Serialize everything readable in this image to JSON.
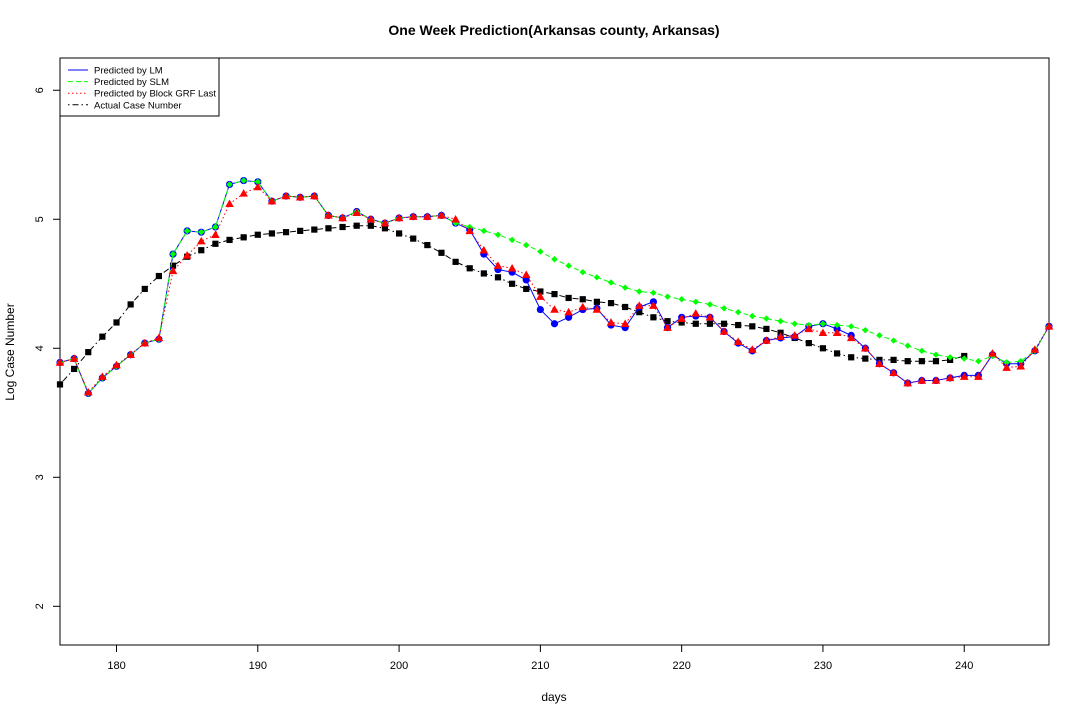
{
  "chart_data": {
    "type": "line",
    "title": "One Week Prediction(Arkansas county, Arkansas)",
    "xlabel": "days",
    "ylabel": "Log Case Number",
    "xlim": [
      176,
      246
    ],
    "ylim": [
      1.7,
      6.25
    ],
    "xticks": [
      180,
      190,
      200,
      210,
      220,
      230,
      240
    ],
    "yticks": [
      2,
      3,
      4,
      5,
      6
    ],
    "legend_position": "top-left",
    "grid": false,
    "x": [
      176,
      177,
      178,
      179,
      180,
      181,
      182,
      183,
      184,
      185,
      186,
      187,
      188,
      189,
      190,
      191,
      192,
      193,
      194,
      195,
      196,
      197,
      198,
      199,
      200,
      201,
      202,
      203,
      204,
      205,
      206,
      207,
      208,
      209,
      210,
      211,
      212,
      213,
      214,
      215,
      216,
      217,
      218,
      219,
      220,
      221,
      222,
      223,
      224,
      225,
      226,
      227,
      228,
      229,
      230,
      231,
      232,
      233,
      234,
      235,
      236,
      237,
      238,
      239,
      240,
      241,
      242,
      243,
      244,
      245,
      246
    ],
    "series": [
      {
        "name": "Predicted by LM",
        "color": "#0000ff",
        "line": "solid",
        "marker": "circle",
        "values": [
          3.89,
          3.92,
          3.65,
          3.77,
          3.86,
          3.95,
          4.04,
          4.07,
          4.73,
          4.91,
          4.9,
          4.94,
          5.27,
          5.3,
          5.29,
          5.14,
          5.18,
          5.17,
          5.18,
          5.03,
          5.01,
          5.06,
          5.0,
          4.97,
          5.01,
          5.02,
          5.02,
          5.03,
          4.97,
          4.92,
          4.73,
          4.61,
          4.59,
          4.53,
          4.3,
          4.19,
          4.24,
          4.3,
          4.31,
          4.18,
          4.16,
          4.32,
          4.36,
          4.16,
          4.24,
          4.25,
          4.24,
          4.13,
          4.04,
          3.98,
          4.06,
          4.08,
          4.09,
          4.17,
          4.19,
          4.15,
          4.1,
          4.0,
          3.88,
          3.81,
          3.73,
          3.75,
          3.75,
          3.77,
          3.79,
          3.79,
          3.95,
          3.88,
          3.88,
          3.98,
          4.17
        ]
      },
      {
        "name": "Predicted by SLM",
        "color": "#00ff00",
        "line": "dashed",
        "marker": "diamond",
        "values": [
          3.89,
          3.92,
          3.65,
          3.77,
          3.86,
          3.95,
          4.04,
          4.07,
          4.73,
          4.91,
          4.9,
          4.94,
          5.27,
          5.3,
          5.29,
          5.14,
          5.18,
          5.17,
          5.18,
          5.03,
          5.01,
          5.06,
          5.0,
          4.97,
          5.01,
          5.02,
          5.02,
          5.03,
          4.97,
          4.94,
          4.91,
          4.88,
          4.84,
          4.8,
          4.75,
          4.69,
          4.64,
          4.59,
          4.55,
          4.51,
          4.47,
          4.44,
          4.43,
          4.4,
          4.38,
          4.36,
          4.34,
          4.31,
          4.28,
          4.25,
          4.23,
          4.21,
          4.19,
          4.18,
          4.19,
          4.18,
          4.17,
          4.14,
          4.1,
          4.06,
          4.02,
          3.98,
          3.95,
          3.93,
          3.92,
          3.9,
          3.94,
          3.89,
          3.9,
          3.98,
          4.17
        ]
      },
      {
        "name": "Predicted by Block GRF Last",
        "color": "#ff0000",
        "line": "dotted",
        "marker": "triangle",
        "values": [
          3.89,
          3.92,
          3.66,
          3.78,
          3.87,
          3.95,
          4.04,
          4.08,
          4.6,
          4.72,
          4.83,
          4.88,
          5.12,
          5.2,
          5.25,
          5.14,
          5.18,
          5.17,
          5.18,
          5.03,
          5.01,
          5.05,
          5.0,
          4.97,
          5.01,
          5.02,
          5.02,
          5.03,
          5.0,
          4.91,
          4.76,
          4.64,
          4.62,
          4.57,
          4.4,
          4.3,
          4.28,
          4.32,
          4.3,
          4.2,
          4.19,
          4.33,
          4.33,
          4.16,
          4.23,
          4.27,
          4.24,
          4.13,
          4.05,
          3.99,
          4.06,
          4.09,
          4.1,
          4.15,
          4.12,
          4.12,
          4.08,
          4.0,
          3.88,
          3.81,
          3.73,
          3.75,
          3.75,
          3.77,
          3.78,
          3.78,
          3.96,
          3.85,
          3.86,
          3.99,
          4.17
        ]
      },
      {
        "name": "Actual Case Number",
        "color": "#000000",
        "line": "dotdash",
        "marker": "square",
        "values": [
          3.72,
          3.84,
          3.97,
          4.09,
          4.2,
          4.34,
          4.46,
          4.56,
          4.64,
          4.71,
          4.76,
          4.81,
          4.84,
          4.86,
          4.88,
          4.89,
          4.9,
          4.91,
          4.92,
          4.93,
          4.94,
          4.95,
          4.95,
          4.93,
          4.89,
          4.85,
          4.8,
          4.74,
          4.67,
          4.62,
          4.58,
          4.55,
          4.5,
          4.46,
          4.44,
          4.42,
          4.39,
          4.38,
          4.36,
          4.35,
          4.32,
          4.28,
          4.24,
          4.21,
          4.2,
          4.19,
          4.19,
          4.19,
          4.18,
          4.17,
          4.15,
          4.12,
          4.08,
          4.04,
          4.0,
          3.96,
          3.93,
          3.92,
          3.91,
          3.91,
          3.9,
          3.9,
          3.9,
          3.91,
          3.94,
          null,
          null,
          null,
          null,
          null,
          null
        ]
      }
    ]
  }
}
